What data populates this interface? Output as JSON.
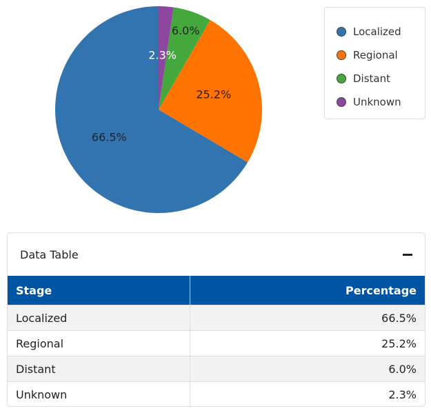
{
  "chart_data": {
    "type": "pie",
    "categories": [
      "Localized",
      "Regional",
      "Distant",
      "Unknown"
    ],
    "values": [
      66.5,
      25.2,
      6.0,
      2.3
    ],
    "labels": [
      "66.5%",
      "25.2%",
      "6.0%",
      "2.3%"
    ],
    "colors": [
      "#3274b0",
      "#ff7300",
      "#44a83c",
      "#8c479e"
    ],
    "label_colors": [
      "#222222",
      "#222222",
      "#222222",
      "#ffffff"
    ],
    "direction": "counterclockwise from top",
    "legend_position": "top-right"
  },
  "legend": {
    "items": [
      "Localized",
      "Regional",
      "Distant",
      "Unknown"
    ]
  },
  "table_panel": {
    "title": "Data Table",
    "columns": [
      "Stage",
      "Percentage"
    ],
    "rows": [
      [
        "Localized",
        "66.5%"
      ],
      [
        "Regional",
        "25.2%"
      ],
      [
        "Distant",
        "6.0%"
      ],
      [
        "Unknown",
        "2.3%"
      ]
    ]
  }
}
